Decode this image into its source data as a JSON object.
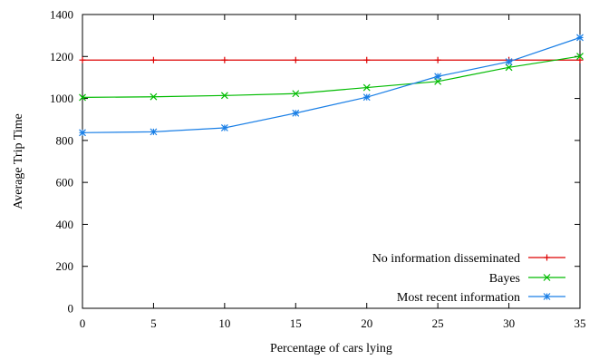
{
  "chart_data": {
    "type": "line",
    "xlabel": "Percentage of cars lying",
    "ylabel": "Average Trip Time",
    "xlim": [
      0,
      35
    ],
    "ylim": [
      0,
      1400
    ],
    "x_ticks": [
      0,
      5,
      10,
      15,
      20,
      25,
      30,
      35
    ],
    "y_ticks": [
      0,
      200,
      400,
      600,
      800,
      1000,
      1200,
      1400
    ],
    "grid": false,
    "legend_position": "bottom-right",
    "x": [
      0,
      5,
      10,
      15,
      20,
      25,
      30,
      35
    ],
    "series": [
      {
        "name": "No information disseminated",
        "color": "#dd0000",
        "marker": "plus",
        "values": [
          1183,
          1183,
          1183,
          1183,
          1183,
          1183,
          1183,
          1183
        ]
      },
      {
        "name": "Bayes",
        "color": "#00bb00",
        "marker": "cross",
        "values": [
          1005,
          1008,
          1014,
          1023,
          1052,
          1081,
          1148,
          1201
        ]
      },
      {
        "name": "Most recent information",
        "color": "#1a7fe6",
        "marker": "star",
        "values": [
          837,
          841,
          860,
          930,
          1006,
          1105,
          1175,
          1290
        ]
      }
    ]
  }
}
